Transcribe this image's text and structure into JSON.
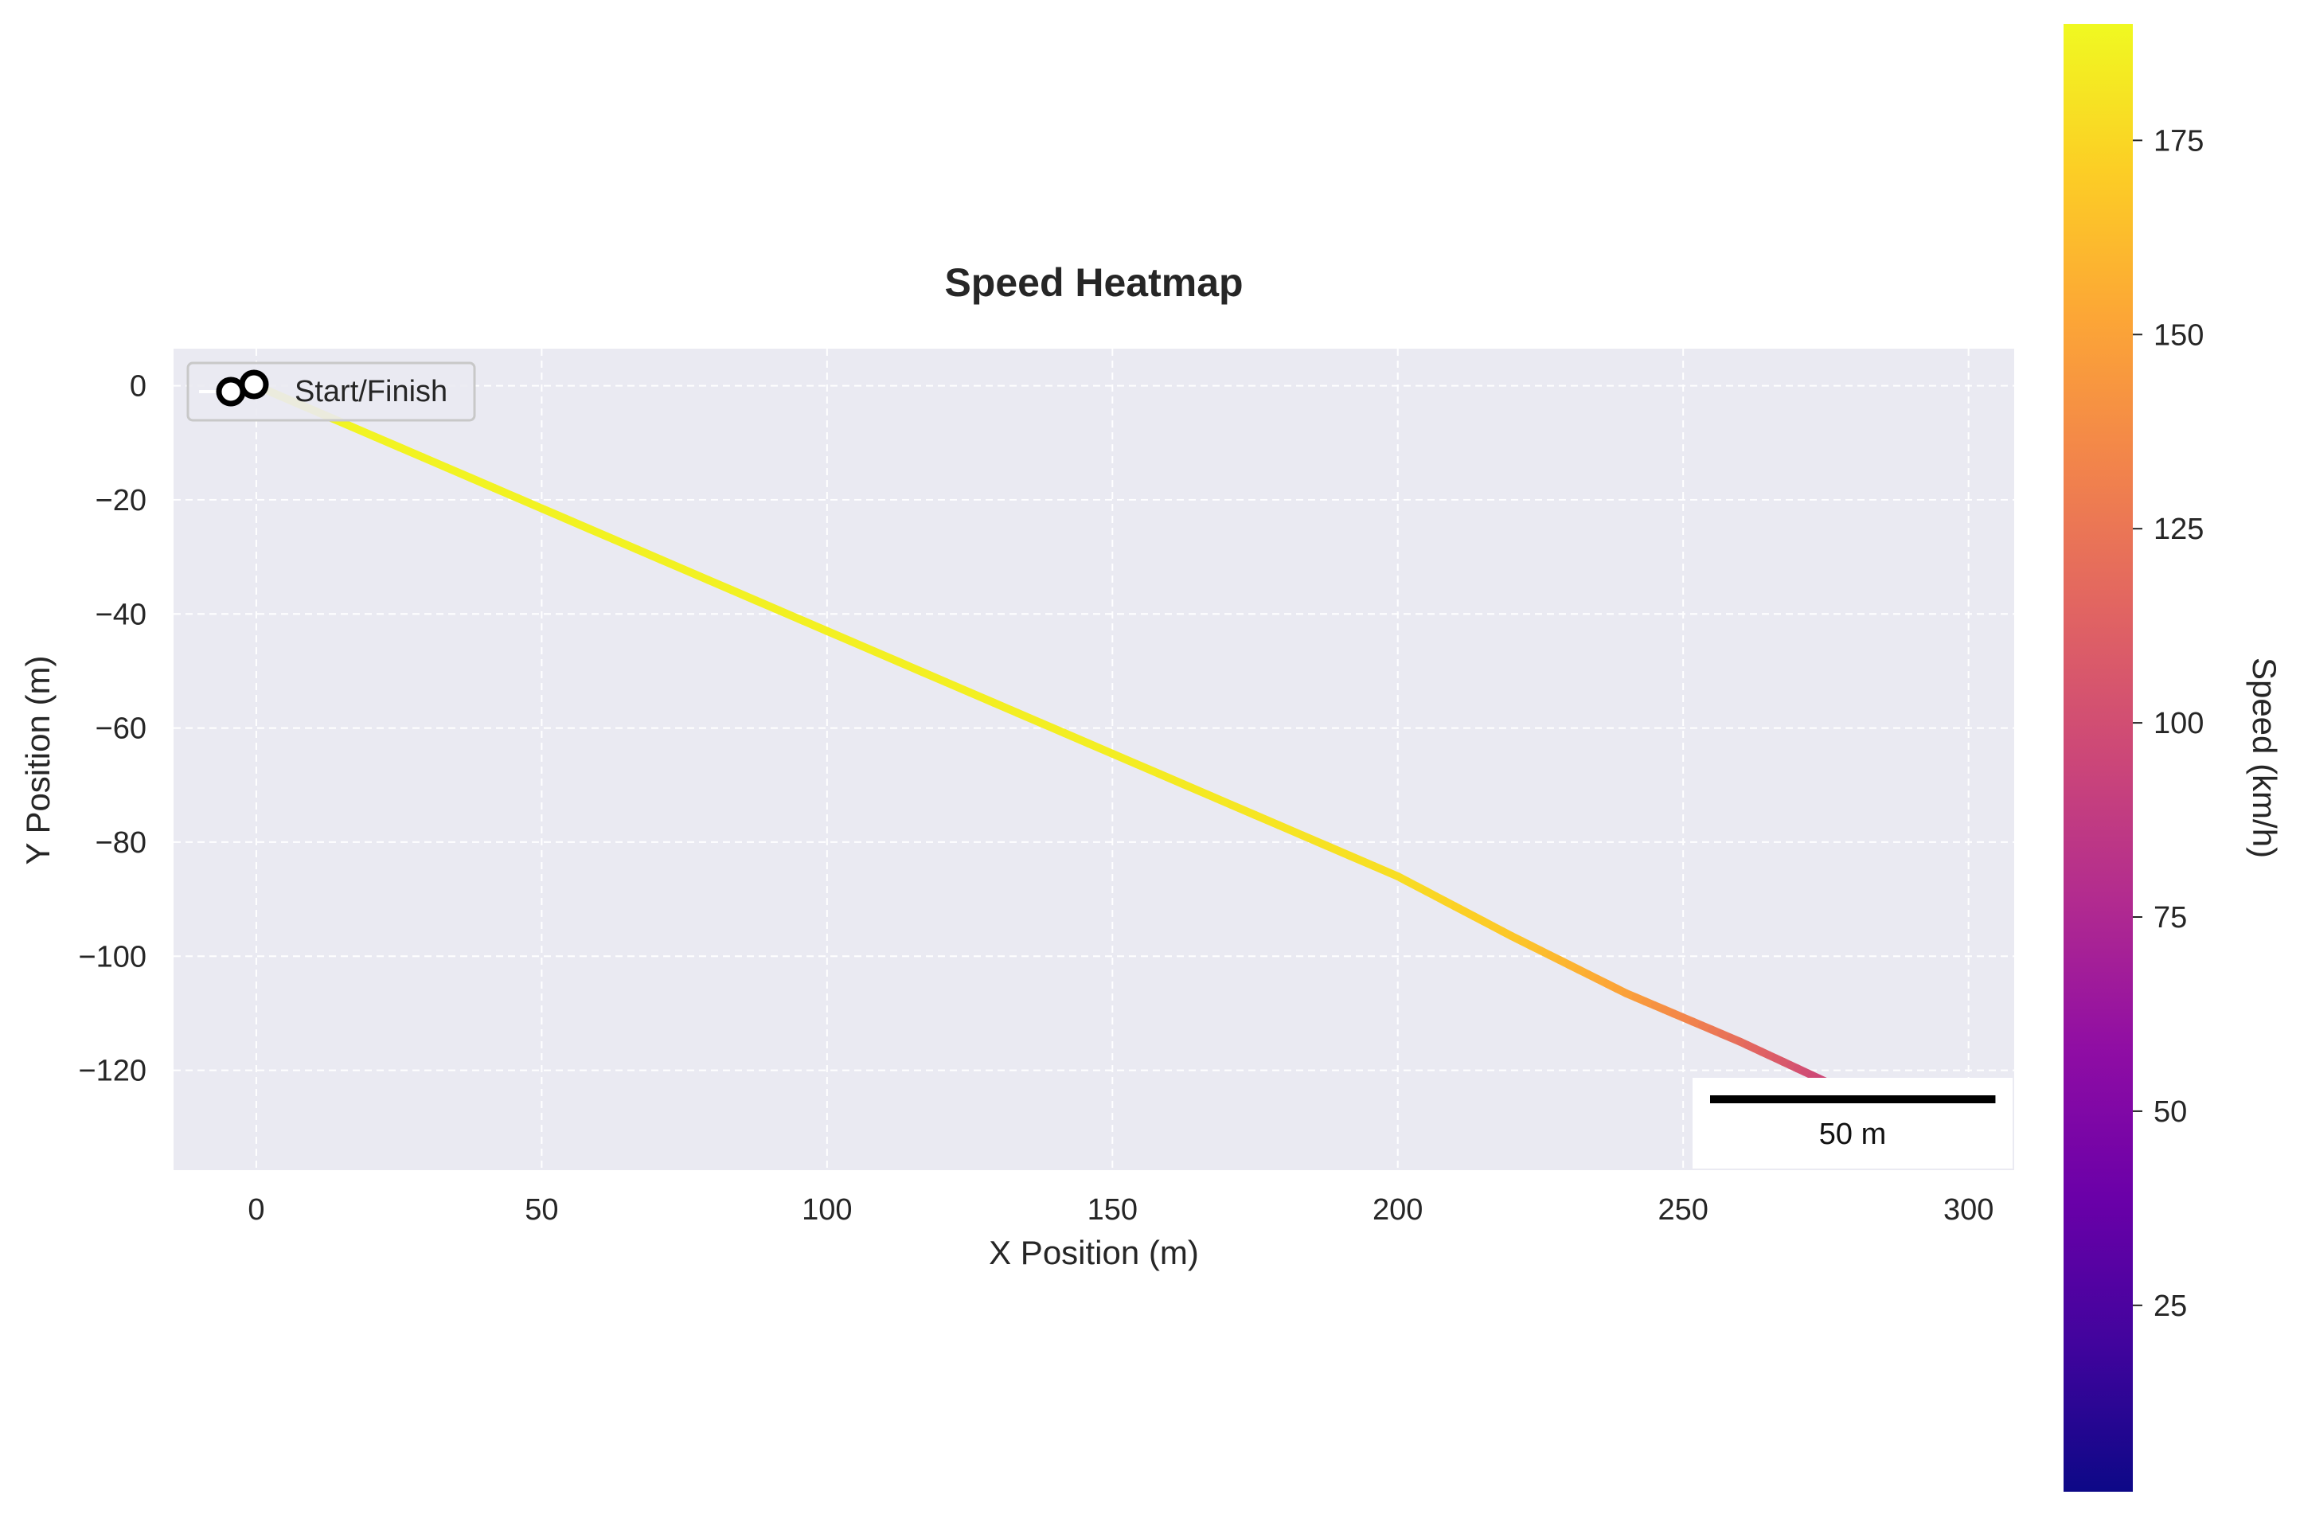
{
  "chart_data": {
    "type": "line",
    "title": "Speed Heatmap",
    "xlabel": "X Position (m)",
    "ylabel": "Y Position (m)",
    "xlim": [
      -14.5,
      308
    ],
    "ylim": [
      -137.5,
      6.5
    ],
    "xticks": [
      0,
      50,
      100,
      150,
      200,
      250,
      300
    ],
    "yticks": [
      0,
      -20,
      -40,
      -60,
      -80,
      -100,
      -120
    ],
    "grid": true,
    "legend": {
      "label": "Start/Finish",
      "placement": "top-left"
    },
    "scale_bar": {
      "label": "50 m",
      "length_m": 50
    },
    "series": [
      {
        "name": "trajectory",
        "x": [
          0,
          50,
          100,
          150,
          200,
          220,
          240,
          260,
          275
        ],
        "y": [
          0,
          -21.5,
          -43,
          -64.5,
          -86,
          -96.5,
          -106.5,
          -115,
          -122
        ],
        "speed": [
          188,
          187,
          186,
          185,
          178,
          168,
          150,
          120,
          95
        ]
      }
    ],
    "colorbar": {
      "label": "Speed (km/h)",
      "range": [
        1,
        190
      ],
      "ticks": [
        25,
        50,
        75,
        100,
        125,
        150,
        175
      ],
      "colormap": "plasma"
    }
  }
}
